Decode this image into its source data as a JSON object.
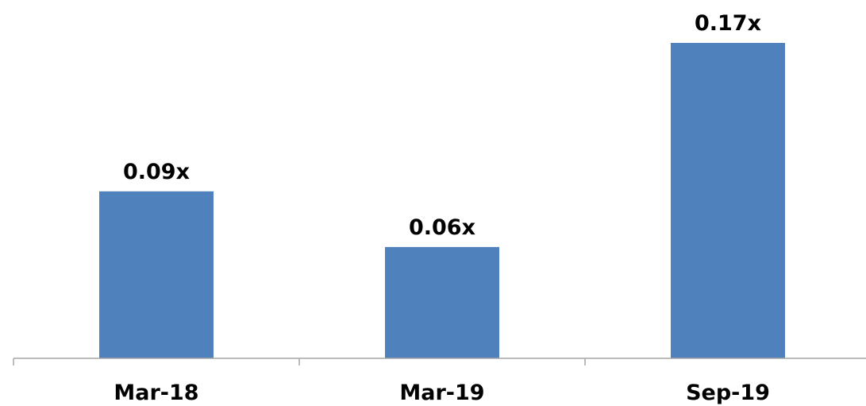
{
  "chart_data": {
    "type": "bar",
    "categories": [
      "Mar-18",
      "Mar-19",
      "Sep-19"
    ],
    "values": [
      0.09,
      0.06,
      0.17
    ],
    "data_labels": [
      "0.09x",
      "0.06x",
      "0.17x"
    ],
    "title": "",
    "xlabel": "",
    "ylabel": "",
    "ylim": [
      0,
      0.17
    ],
    "grid": false,
    "legend": "none",
    "colors": {
      "bar": "#4f81bd",
      "axis": "#a6a6a6",
      "text": "#000000"
    }
  }
}
